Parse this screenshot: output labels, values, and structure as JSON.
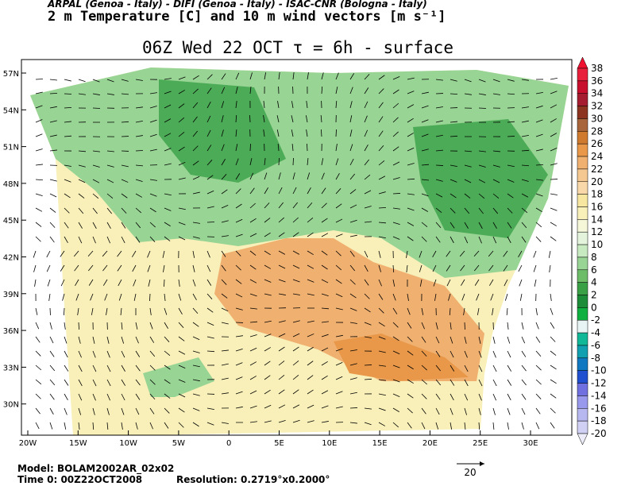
{
  "header": {
    "institutions": "ARPAL (Genoa - Italy)  -  DIFI (Genoa - Italy)  -  ISAC-CNR (Bologna - Italy)",
    "field": "2 m Temperature [C] and 10 m wind vectors [m s⁻¹]",
    "title": "06Z Wed 22 OCT  τ = 6h  -  surface"
  },
  "map": {
    "lat_labels": [
      "57N",
      "54N",
      "51N",
      "48N",
      "45N",
      "42N",
      "39N",
      "36N",
      "33N",
      "30N"
    ],
    "lon_labels": [
      "20W",
      "15W",
      "10W",
      "5W",
      "0",
      "5E",
      "10E",
      "15E",
      "20E",
      "25E",
      "30E"
    ]
  },
  "colorbar": {
    "labels": [
      "38",
      "36",
      "34",
      "32",
      "30",
      "28",
      "26",
      "24",
      "22",
      "20",
      "18",
      "16",
      "14",
      "12",
      "10",
      "8",
      "6",
      "4",
      "2",
      "0",
      "-2",
      "-4",
      "-6",
      "-8",
      "-10",
      "-12",
      "-14",
      "-16",
      "-18",
      "-20"
    ],
    "colors": [
      "#f01030",
      "#e8203c",
      "#c8102e",
      "#a51c30",
      "#8c3420",
      "#a8643a",
      "#d07a30",
      "#e89848",
      "#f0b070",
      "#f4c890",
      "#f8d8a8",
      "#f6e6a0",
      "#f8f0b8",
      "#f6f6d8",
      "#e4f4dc",
      "#c8eac0",
      "#98d494",
      "#6cbc68",
      "#3aa046",
      "#1c8c38",
      "#10b040",
      "#e8f4f4",
      "#10b898",
      "#10a0b0",
      "#1078c0",
      "#2050d0",
      "#7070e0",
      "#9898ec",
      "#b8b8f0",
      "#d0d0f4",
      "#ececf8"
    ]
  },
  "footer": {
    "model": "Model:  BOLAM2002AR_02x02",
    "time": "Time 0:  00Z22OCT2008",
    "resolution": "Resolution:  0.2719°x0.2000°",
    "scale": "20"
  }
}
